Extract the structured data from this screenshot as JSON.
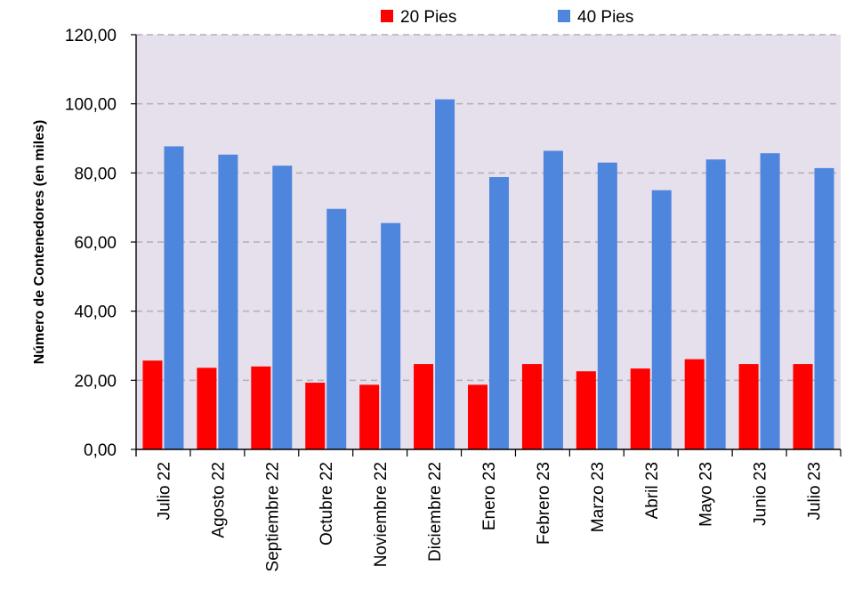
{
  "chart_data": {
    "type": "bar",
    "title": "",
    "xlabel": "",
    "ylabel": "Número  de Contenedores (en miles)",
    "ylim": [
      0,
      120
    ],
    "ytick_step": 20,
    "ytick_labels": [
      "0,00",
      "20,00",
      "40,00",
      "60,00",
      "80,00",
      "100,00",
      "120,00"
    ],
    "grid": true,
    "legend_position": "top",
    "categories": [
      "Julio 22",
      "Agosto 22",
      "Septiembre 22",
      "Octubre 22",
      "Noviembre 22",
      "Diciembre 22",
      "Enero 23",
      "Febrero 23",
      "Marzo 23",
      "Abril 23",
      "Mayo 23",
      "Junio 23",
      "Julio 23"
    ],
    "series": [
      {
        "name": "20 Pies",
        "color": "#ff0000",
        "values": [
          25.7,
          23.6,
          24.0,
          19.3,
          18.7,
          24.7,
          18.7,
          24.7,
          22.6,
          23.4,
          26.1,
          24.7,
          24.7
        ]
      },
      {
        "name": "40 Pies",
        "color": "#4f86dd",
        "values": [
          87.7,
          85.3,
          82.1,
          69.6,
          65.5,
          101.3,
          78.8,
          86.4,
          83.0,
          75.0,
          83.9,
          85.7,
          81.4
        ]
      }
    ],
    "plot_background": "#e6dfec",
    "gridline_color": "#b0aeb8"
  }
}
